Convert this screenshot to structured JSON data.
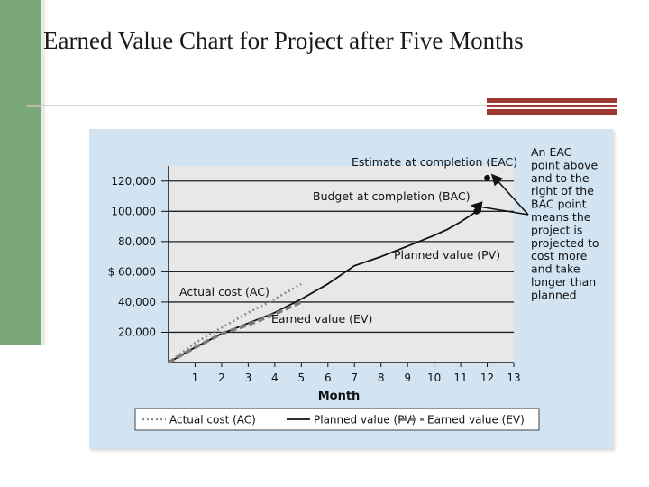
{
  "slide": {
    "title": "Earned Value Chart for Project after Five Months"
  },
  "colors": {
    "accent_green": "#7ba878",
    "accent_red": "#9b3a35",
    "panel_blue": "#d2e4f1"
  },
  "chart_data": {
    "type": "line",
    "xlabel": "Month",
    "ylabel": "$",
    "xlim": [
      0,
      13
    ],
    "ylim": [
      0,
      130000
    ],
    "grid": true,
    "x_ticks": [
      1,
      2,
      3,
      4,
      5,
      6,
      7,
      8,
      9,
      10,
      11,
      12,
      13
    ],
    "y_ticks": [
      {
        "value": 0,
        "label": "-"
      },
      {
        "value": 20000,
        "label": "20,000"
      },
      {
        "value": 40000,
        "label": "40,000"
      },
      {
        "value": 60000,
        "label": "$ 60,000"
      },
      {
        "value": 80000,
        "label": "80,000"
      },
      {
        "value": 100000,
        "label": "100,000"
      },
      {
        "value": 120000,
        "label": "120,000"
      }
    ],
    "series": [
      {
        "name": "Planned value (PV)",
        "style": "solid",
        "x": [
          0,
          1,
          2,
          3,
          4,
          5,
          6,
          6.5,
          7,
          7.5,
          8,
          9,
          10,
          10.5,
          11,
          11.6
        ],
        "y": [
          0,
          10000,
          19000,
          26000,
          33000,
          42000,
          52000,
          58000,
          64000,
          67000,
          70000,
          77000,
          84000,
          88000,
          93000,
          100000
        ]
      },
      {
        "name": "Actual cost (AC)",
        "style": "dotted",
        "x": [
          0,
          1,
          2,
          3,
          4,
          5
        ],
        "y": [
          0,
          13000,
          23000,
          33000,
          42000,
          52000
        ]
      },
      {
        "name": "Earned value (EV)",
        "style": "dashed",
        "x": [
          0,
          1,
          2,
          3,
          4,
          5
        ],
        "y": [
          0,
          10000,
          19000,
          25000,
          32000,
          40000
        ]
      }
    ],
    "points": [
      {
        "name": "Budget at completion (BAC)",
        "x": 11.6,
        "y": 100000
      },
      {
        "name": "Estimate at completion (EAC)",
        "x": 12,
        "y": 122000
      }
    ],
    "annotations": [
      {
        "text": "Estimate at completion (EAC)"
      },
      {
        "text": "Budget at completion (BAC)"
      },
      {
        "text": "Planned value (PV)"
      },
      {
        "text": "Actual cost (AC)"
      },
      {
        "text": "Earned value (EV)"
      }
    ],
    "side_note": [
      "An EAC",
      "point above",
      "and to the",
      "right of the",
      "BAC point",
      "means the",
      "project is",
      "projected to",
      "cost more",
      "and take",
      "longer than",
      "planned"
    ],
    "legend": {
      "placement": "bottom",
      "items": [
        {
          "label": "Actual cost (AC)",
          "style": "dotted"
        },
        {
          "label": "Planned value (PV)",
          "style": "solid"
        },
        {
          "label": "Earned value (EV)",
          "style": "dashed"
        }
      ]
    }
  }
}
